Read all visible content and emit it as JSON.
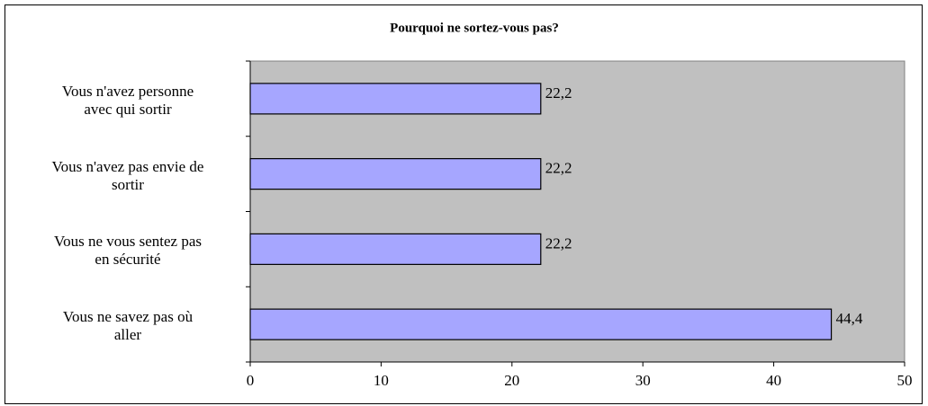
{
  "chart_data": {
    "type": "hbar",
    "title": "Pourquoi ne sortez-vous pas?",
    "categories": [
      "Vous n'avez personne avec qui sortir",
      "Vous n'avez pas envie de sortir",
      "Vous ne vous sentez pas en sécurité",
      "Vous ne savez pas où aller"
    ],
    "values": [
      22.2,
      22.2,
      22.2,
      44.4
    ],
    "value_labels": [
      "22,2",
      "22,2",
      "22,2",
      "44,4"
    ],
    "color": "#a6a6ff",
    "plot_background": "#c0c0c0",
    "xlim": [
      0,
      50
    ],
    "xticks": [
      0,
      10,
      20,
      30,
      40,
      50
    ],
    "grid": false
  }
}
